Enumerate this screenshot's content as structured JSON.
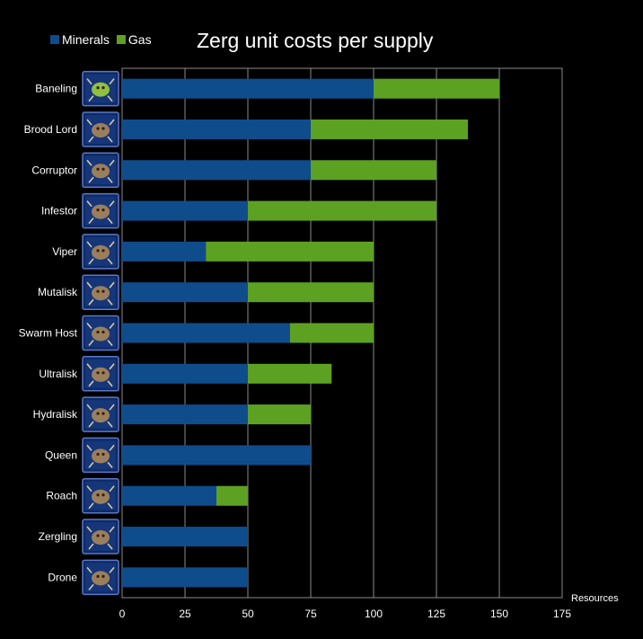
{
  "chart_data": {
    "type": "bar",
    "orientation": "horizontal",
    "stacked": true,
    "title": "Zerg unit costs per supply",
    "xlabel": "Resources",
    "ylabel": "",
    "xlim": [
      0,
      175
    ],
    "xticks": [
      0,
      25,
      50,
      75,
      100,
      125,
      150,
      175
    ],
    "grid": true,
    "legend": "top-left",
    "categories": [
      "Baneling",
      "Brood Lord",
      "Corruptor",
      "Infestor",
      "Viper",
      "Mutalisk",
      "Swarm Host",
      "Ultralisk",
      "Hydralisk",
      "Queen",
      "Roach",
      "Zergling",
      "Drone"
    ],
    "series": [
      {
        "name": "Minerals",
        "color": "#0f4c8c",
        "values": [
          100,
          75,
          75,
          50,
          33.3,
          50,
          66.7,
          50,
          50,
          75,
          37.5,
          50,
          50
        ]
      },
      {
        "name": "Gas",
        "color": "#5da122",
        "values": [
          50,
          62.5,
          50,
          75,
          66.7,
          50,
          33.3,
          33.3,
          25,
          0,
          12.5,
          0,
          0
        ]
      }
    ],
    "category_icons": [
      "baneling-icon",
      "brood-lord-icon",
      "corruptor-icon",
      "infestor-icon",
      "viper-icon",
      "mutalisk-icon",
      "swarm-host-icon",
      "ultralisk-icon",
      "hydralisk-icon",
      "queen-icon",
      "roach-icon",
      "zergling-icon",
      "drone-icon"
    ],
    "grid_color": "#8a8a8a",
    "background": "#000000"
  }
}
